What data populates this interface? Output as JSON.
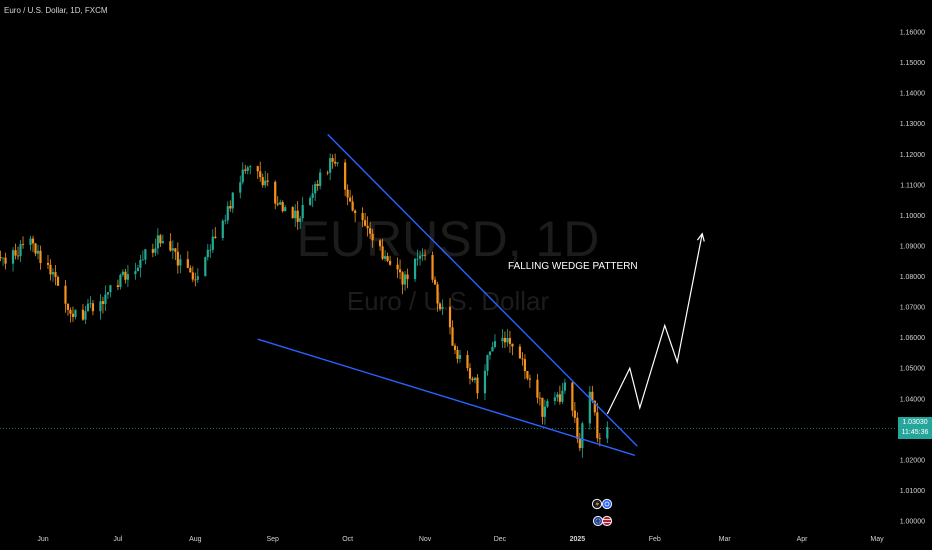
{
  "header": {
    "title": "Euro / U.S. Dollar, 1D, FXCM"
  },
  "watermark": {
    "symbol": "EURUSD, 1D",
    "name": "Euro / U.S. Dollar"
  },
  "annotation": {
    "label": "FALLING WEDGE PATTERN"
  },
  "colors": {
    "background": "#000000",
    "up": "#22ab94",
    "down": "#f7931a",
    "trendline": "#2962ff",
    "projection": "#ffffff",
    "price_line": "#26a69a"
  },
  "price_tag": {
    "price": "1.03030",
    "countdown": "11:45:36"
  },
  "event_icons": [
    "flash-icon",
    "dollar-icon",
    "euro-flag-icon",
    "us-flag-icon"
  ],
  "chart_data": {
    "type": "candlestick",
    "title": "Euro / U.S. Dollar, 1D, FXCM",
    "y_ticks": [
      "1.16000",
      "1.15000",
      "1.14000",
      "1.13000",
      "1.12000",
      "1.11000",
      "1.10000",
      "1.09000",
      "1.08000",
      "1.07000",
      "1.06000",
      "1.05000",
      "1.04000",
      "1.03000",
      "1.02000",
      "1.01000",
      "1.00000"
    ],
    "x_ticks": [
      "Jun",
      "Jul",
      "Aug",
      "Sep",
      "Oct",
      "Nov",
      "Dec",
      "2025",
      "Feb",
      "Mar",
      "Apr",
      "May"
    ],
    "ylim": [
      1.0,
      1.165
    ],
    "anchors": [
      [
        "2024-05-01",
        1.072
      ],
      [
        "2024-05-12",
        1.083
      ],
      [
        "2024-05-28",
        1.091
      ],
      [
        "2024-06-14",
        1.067
      ],
      [
        "2024-06-25",
        1.072
      ],
      [
        "2024-07-18",
        1.093
      ],
      [
        "2024-08-01",
        1.079
      ],
      [
        "2024-08-23",
        1.118
      ],
      [
        "2024-09-03",
        1.104
      ],
      [
        "2024-09-11",
        1.1
      ],
      [
        "2024-09-25",
        1.119
      ],
      [
        "2024-10-03",
        1.104
      ],
      [
        "2024-10-10",
        1.093
      ],
      [
        "2024-10-23",
        1.078
      ],
      [
        "2024-11-01",
        1.089
      ],
      [
        "2024-11-06",
        1.072
      ],
      [
        "2024-11-15",
        1.053
      ],
      [
        "2024-11-22",
        1.043
      ],
      [
        "2024-11-28",
        1.057
      ],
      [
        "2024-12-06",
        1.058
      ],
      [
        "2024-12-18",
        1.036
      ],
      [
        "2024-12-27",
        1.043
      ],
      [
        "2025-01-02",
        1.026
      ],
      [
        "2025-01-06",
        1.042
      ],
      [
        "2025-01-10",
        1.025
      ],
      [
        "2025-01-13",
        1.03
      ]
    ],
    "trendlines": [
      {
        "name": "upper",
        "from": [
          "2024-09-23",
          1.1265
        ],
        "to": [
          "2025-01-25",
          1.0245
        ]
      },
      {
        "name": "lower",
        "from": [
          "2024-08-26",
          1.0595
        ],
        "to": [
          "2025-01-24",
          1.0215
        ]
      }
    ],
    "projection": [
      [
        "2025-01-13",
        1.035
      ],
      [
        "2025-01-22",
        1.05
      ],
      [
        "2025-01-26",
        1.037
      ],
      [
        "2025-02-05",
        1.064
      ],
      [
        "2025-02-10",
        1.052
      ],
      [
        "2025-02-20",
        1.094
      ]
    ],
    "last_price": 1.0303
  }
}
